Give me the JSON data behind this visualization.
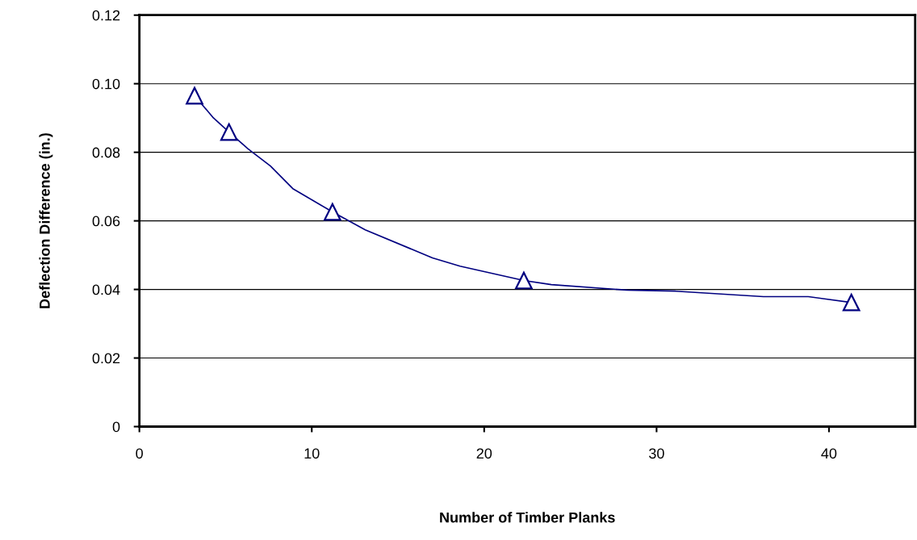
{
  "chart_data": {
    "type": "scatter",
    "xlabel": "Number of Timber Planks",
    "ylabel": "Deflection Difference (in.)",
    "x": [
      3.2,
      5.2,
      11.2,
      22.3,
      41.3
    ],
    "series": [
      {
        "type": "line",
        "marker": "none",
        "color": "#000080",
        "x": [
          3.2,
          4.3,
          5.2,
          6.3,
          7.6,
          8.9,
          11.2,
          13.1,
          17.0,
          18.6,
          22.3,
          23.9,
          28.3,
          31.1,
          36.2,
          38.8,
          41.3
        ],
        "values": [
          0.0965,
          0.09,
          0.0859,
          0.081,
          0.076,
          0.0694,
          0.0626,
          0.0574,
          0.0492,
          0.0468,
          0.0426,
          0.0414,
          0.0398,
          0.0395,
          0.0379,
          0.0379,
          0.0362
        ]
      },
      {
        "marker": "triangle",
        "color": "#000080",
        "values": [
          0.0965,
          0.0859,
          0.0626,
          0.0426,
          0.0362
        ]
      }
    ],
    "xlim": [
      0,
      45
    ],
    "xticks": [
      0,
      10,
      20,
      30,
      40
    ],
    "ylim": [
      0,
      0.12
    ],
    "yticks": [
      {
        "value": 0,
        "label": "0"
      },
      {
        "value": 0.02,
        "label": "0.02"
      },
      {
        "value": 0.04,
        "label": "0.04"
      },
      {
        "value": 0.06,
        "label": "0.06"
      },
      {
        "value": 0.08,
        "label": "0.08"
      },
      {
        "value": 0.1,
        "label": "0.10"
      },
      {
        "value": 0.12,
        "label": "0.12"
      }
    ],
    "grid": "y",
    "line_style": "solid"
  }
}
